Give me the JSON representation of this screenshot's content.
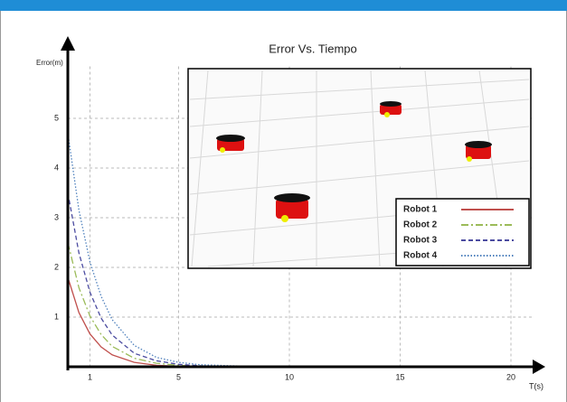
{
  "chart_data": {
    "type": "line",
    "title": "Error Vs. Tiempo",
    "x_label": "T(s)",
    "y_label": "Error(m)",
    "x": [
      0,
      0.5,
      1,
      1.5,
      2,
      3,
      4,
      5,
      6,
      8
    ],
    "series": [
      {
        "name": "Robot 1",
        "color": "#c0504d",
        "dash": "solid",
        "values": [
          1.8,
          1.09,
          0.66,
          0.4,
          0.24,
          0.09,
          0.03,
          0.01,
          0,
          0
        ]
      },
      {
        "name": "Robot 2",
        "color": "#9bbb59",
        "dash": "dashdot",
        "values": [
          2.5,
          1.59,
          1.02,
          0.65,
          0.41,
          0.17,
          0.07,
          0.03,
          0.01,
          0
        ]
      },
      {
        "name": "Robot 3",
        "color": "#4b4ba0",
        "dash": "dashed",
        "values": [
          3.5,
          2.29,
          1.5,
          0.98,
          0.64,
          0.27,
          0.12,
          0.05,
          0.02,
          0
        ]
      },
      {
        "name": "Robot 4",
        "color": "#4f81bd",
        "dash": "dotted",
        "values": [
          4.7,
          3.15,
          2.11,
          1.42,
          0.95,
          0.43,
          0.19,
          0.09,
          0.04,
          0.01
        ]
      }
    ],
    "xlim": [
      0,
      21
    ],
    "ylim": [
      0,
      6.5
    ],
    "xticks": [
      1,
      5,
      10,
      15,
      20
    ],
    "yticks": [
      1,
      2,
      3,
      4,
      5
    ],
    "grid": true
  }
}
